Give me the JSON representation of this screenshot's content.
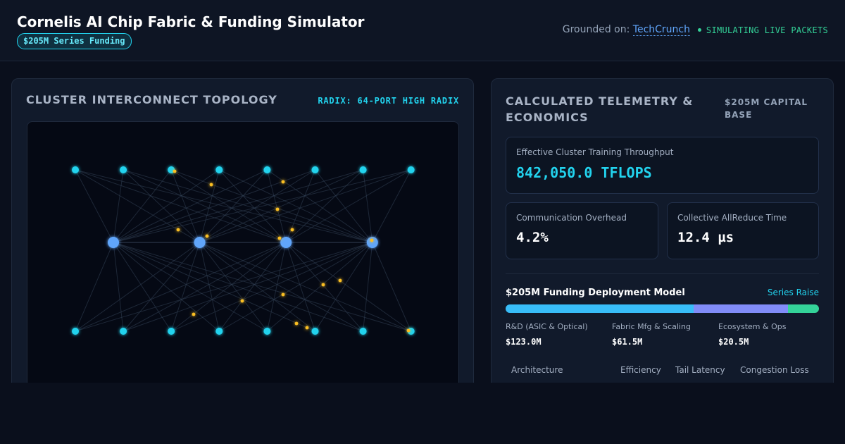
{
  "header": {
    "title": "Cornelis AI Chip Fabric & Funding Simulator",
    "badge": "$205M Series Funding",
    "grounded_prefix": "Grounded on: ",
    "grounded_source": "TechCrunch",
    "status": "SIMULATING LIVE PACKETS"
  },
  "topology": {
    "title": "CLUSTER INTERCONNECT TOPOLOGY",
    "radix_label": "RADIX: 64-PORT HIGH RADIX",
    "layers": {
      "top_nodes": 8,
      "spine_nodes": 4,
      "bottom_nodes": 8
    },
    "colors": {
      "leaf": "#22d3ee",
      "spine": "#60a5fa",
      "link": "#334155",
      "packet": "#fbbf24"
    }
  },
  "telemetry": {
    "title": "CALCULATED TELEMETRY & ECONOMICS",
    "capital_label": "$205M CAPITAL BASE",
    "throughput": {
      "label": "Effective Cluster Training Throughput",
      "value": "842,050.0 TFLOPS"
    },
    "overhead": {
      "label": "Communication Overhead",
      "value": "4.2%"
    },
    "allreduce": {
      "label": "Collective AllReduce Time",
      "value": "12.4 µs"
    }
  },
  "funding": {
    "title": "$205M Funding Deployment Model",
    "tag": "Series Raise",
    "allocations": [
      {
        "name": "R&D (ASIC & Optical)",
        "value": "$123.0M",
        "share": 0.6,
        "color": "#38bdf8"
      },
      {
        "name": "Fabric Mfg & Scaling",
        "value": "$61.5M",
        "share": 0.3,
        "color": "#818cf8"
      },
      {
        "name": "Ecosystem & Ops",
        "value": "$20.5M",
        "share": 0.1,
        "color": "#34d399"
      }
    ]
  },
  "table": {
    "columns": [
      "Architecture",
      "Efficiency",
      "Tail Latency",
      "Congestion Loss"
    ]
  }
}
